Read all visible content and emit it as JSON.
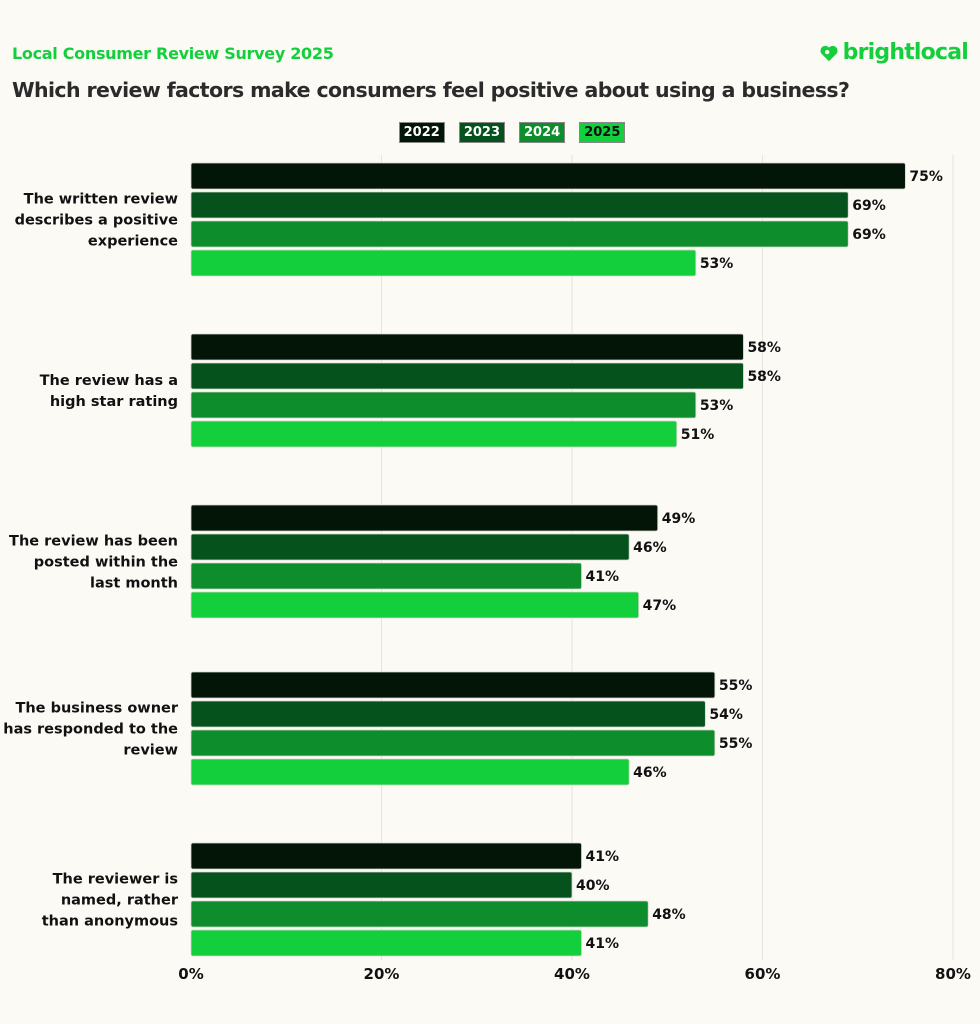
{
  "header": {
    "subtitle": "Local Consumer Review Survey 2025",
    "title": "Which review factors make consumers feel positive about using a business?",
    "logo_text": "brightlocal",
    "logo_icon": "heart-pin-icon"
  },
  "colors": {
    "brand": "#14cf3c",
    "2022": "#021506",
    "2023": "#05521c",
    "2024": "#0d8d2b",
    "2025": "#14cf3c"
  },
  "chart_data": {
    "type": "bar",
    "orientation": "horizontal",
    "title": "Which review factors make consumers feel positive about using a business?",
    "subtitle": "Local Consumer Review Survey 2025",
    "legend": [
      "2022",
      "2023",
      "2024",
      "2025"
    ],
    "legend_position": "top-center",
    "categories": [
      [
        "The written review",
        "describes a positive",
        "experience"
      ],
      [
        "The review has a",
        "high star rating"
      ],
      [
        "The review has been",
        "posted within the",
        "last month"
      ],
      [
        "The business owner",
        "has responded to the",
        "review"
      ],
      [
        "The reviewer is",
        "named, rather",
        "than anonymous"
      ]
    ],
    "series": [
      {
        "name": "2022",
        "values": [
          75,
          58,
          49,
          55,
          41
        ]
      },
      {
        "name": "2023",
        "values": [
          69,
          58,
          46,
          54,
          40
        ]
      },
      {
        "name": "2024",
        "values": [
          69,
          53,
          41,
          55,
          48
        ]
      },
      {
        "name": "2025",
        "values": [
          53,
          51,
          47,
          46,
          41
        ]
      }
    ],
    "xlim": [
      0,
      80
    ],
    "xticks": [
      0,
      20,
      40,
      60,
      80
    ],
    "xtick_labels": [
      "0%",
      "20%",
      "40%",
      "60%",
      "80%"
    ],
    "value_suffix": "%",
    "grid": true
  }
}
